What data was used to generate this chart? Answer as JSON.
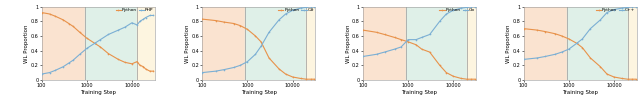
{
  "subplots": [
    {
      "xlabel": "Training Step",
      "ylabel": "WL Proportion",
      "legend": [
        "Python",
        "PHP"
      ],
      "line_colors": [
        "#E8924A",
        "#7BAFD4"
      ],
      "bg_zones": [
        {
          "xmin": 100,
          "xmax": 900,
          "color": "#FAE3D0"
        },
        {
          "xmin": 900,
          "xmax": 13000,
          "color": "#DFF0E8"
        },
        {
          "xmin": 13000,
          "xmax": 35000,
          "color": "#FDF5E0"
        }
      ],
      "vlines": [
        900,
        13000
      ],
      "python_x": [
        100,
        150,
        200,
        300,
        400,
        500,
        700,
        1000,
        1500,
        2000,
        3000,
        5000,
        7000,
        10000,
        13000,
        15000,
        18000,
        20000,
        25000,
        30000
      ],
      "python_y": [
        0.92,
        0.9,
        0.87,
        0.82,
        0.77,
        0.73,
        0.65,
        0.57,
        0.5,
        0.45,
        0.36,
        0.28,
        0.24,
        0.22,
        0.25,
        0.2,
        0.18,
        0.15,
        0.12,
        0.12
      ],
      "other_x": [
        100,
        150,
        200,
        300,
        400,
        500,
        700,
        1000,
        1500,
        2000,
        3000,
        5000,
        7000,
        10000,
        13000,
        15000,
        18000,
        20000,
        25000,
        30000
      ],
      "other_y": [
        0.08,
        0.1,
        0.13,
        0.18,
        0.23,
        0.27,
        0.35,
        0.43,
        0.5,
        0.55,
        0.62,
        0.68,
        0.72,
        0.78,
        0.75,
        0.8,
        0.83,
        0.85,
        0.88,
        0.88
      ]
    },
    {
      "xlabel": "Training Step",
      "ylabel": "WL Proportion",
      "legend": [
        "Python",
        "C#"
      ],
      "line_colors": [
        "#E8924A",
        "#7BAFD4"
      ],
      "bg_zones": [
        {
          "xmin": 100,
          "xmax": 900,
          "color": "#FAE3D0"
        },
        {
          "xmin": 900,
          "xmax": 20000,
          "color": "#DFF0E8"
        },
        {
          "xmin": 20000,
          "xmax": 35000,
          "color": "#FDF5E0"
        }
      ],
      "vlines": [
        900,
        20000
      ],
      "python_x": [
        100,
        200,
        300,
        500,
        700,
        1000,
        1500,
        2000,
        3000,
        5000,
        7000,
        10000,
        15000,
        20000,
        25000,
        30000
      ],
      "python_y": [
        0.83,
        0.81,
        0.79,
        0.77,
        0.74,
        0.69,
        0.6,
        0.52,
        0.3,
        0.15,
        0.08,
        0.04,
        0.02,
        0.01,
        0.01,
        0.01
      ],
      "other_x": [
        100,
        200,
        300,
        500,
        700,
        1000,
        1500,
        2000,
        3000,
        5000,
        7000,
        10000,
        15000,
        20000,
        25000,
        30000
      ],
      "other_y": [
        0.1,
        0.12,
        0.14,
        0.17,
        0.2,
        0.25,
        0.35,
        0.46,
        0.65,
        0.82,
        0.9,
        0.95,
        0.98,
        0.99,
        1.0,
        1.0
      ]
    },
    {
      "xlabel": "Training Step",
      "ylabel": "WL Proportion",
      "legend": [
        "Python",
        "Go"
      ],
      "line_colors": [
        "#E8924A",
        "#7BAFD4"
      ],
      "bg_zones": [
        {
          "xmin": 100,
          "xmax": 900,
          "color": "#FAE3D0"
        },
        {
          "xmin": 900,
          "xmax": 20000,
          "color": "#DFF0E8"
        },
        {
          "xmin": 20000,
          "xmax": 35000,
          "color": "#FDF5E0"
        }
      ],
      "vlines": [
        900,
        20000
      ],
      "python_x": [
        100,
        200,
        300,
        500,
        700,
        1000,
        1500,
        2000,
        3000,
        5000,
        7000,
        10000,
        15000,
        20000,
        25000,
        30000
      ],
      "python_y": [
        0.68,
        0.65,
        0.62,
        0.58,
        0.55,
        0.52,
        0.48,
        0.42,
        0.38,
        0.2,
        0.1,
        0.05,
        0.02,
        0.01,
        0.01,
        0.01
      ],
      "other_x": [
        100,
        200,
        300,
        500,
        700,
        1000,
        1500,
        2000,
        3000,
        5000,
        7000,
        10000,
        15000,
        20000,
        25000,
        30000
      ],
      "other_y": [
        0.32,
        0.35,
        0.38,
        0.42,
        0.45,
        0.55,
        0.55,
        0.58,
        0.62,
        0.8,
        0.9,
        0.95,
        0.98,
        0.99,
        1.0,
        1.0
      ]
    },
    {
      "xlabel": "Training Step",
      "ylabel": "WL Proportion",
      "legend": [
        "Python",
        "C++"
      ],
      "line_colors": [
        "#E8924A",
        "#7BAFD4"
      ],
      "bg_zones": [
        {
          "xmin": 100,
          "xmax": 900,
          "color": "#FAE3D0"
        },
        {
          "xmin": 900,
          "xmax": 20000,
          "color": "#DFF0E8"
        },
        {
          "xmin": 20000,
          "xmax": 35000,
          "color": "#FDF5E0"
        }
      ],
      "vlines": [
        900,
        20000
      ],
      "python_x": [
        100,
        200,
        300,
        500,
        700,
        1000,
        1500,
        2000,
        3000,
        5000,
        7000,
        10000,
        15000,
        20000,
        25000,
        30000
      ],
      "python_y": [
        0.7,
        0.68,
        0.66,
        0.63,
        0.6,
        0.56,
        0.5,
        0.44,
        0.3,
        0.18,
        0.08,
        0.04,
        0.02,
        0.01,
        0.01,
        0.01
      ],
      "other_x": [
        100,
        200,
        300,
        500,
        700,
        1000,
        1500,
        2000,
        3000,
        5000,
        7000,
        10000,
        15000,
        20000,
        25000,
        30000
      ],
      "other_y": [
        0.28,
        0.3,
        0.32,
        0.35,
        0.38,
        0.42,
        0.5,
        0.56,
        0.7,
        0.82,
        0.92,
        0.96,
        0.98,
        0.99,
        1.0,
        1.0
      ]
    }
  ],
  "xmin": 100,
  "xmax": 32000,
  "ymin": 0,
  "ymax": 1.0,
  "xticks": [
    100,
    1000,
    10000
  ],
  "xtick_labels": [
    "100",
    "1000",
    "10000"
  ],
  "yticks": [
    0,
    0.2,
    0.4,
    0.6,
    0.8,
    1.0
  ],
  "ytick_labels": [
    "0",
    "0.2",
    "0.4",
    "0.6",
    "0.8",
    "1"
  ],
  "vline_color": "#999999"
}
